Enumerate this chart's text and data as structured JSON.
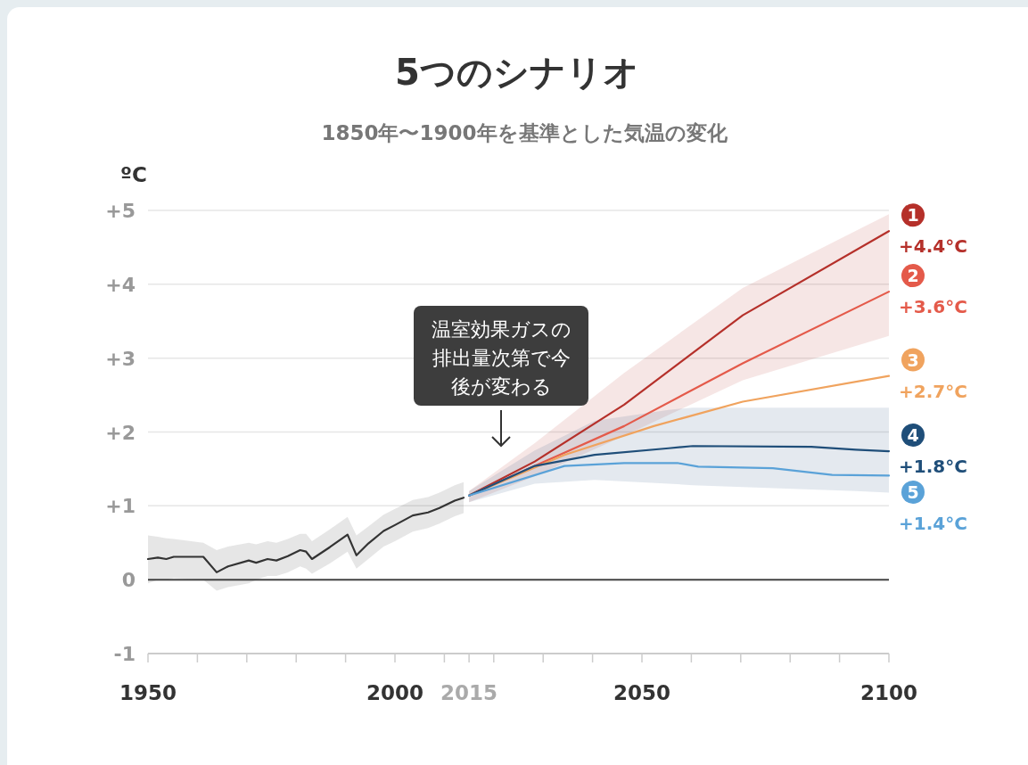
{
  "chart_data": {
    "type": "line",
    "title": "5つのシナリオ",
    "subtitle": "1850年〜1900年を基準とした気温の変化",
    "ylabel": "ºC",
    "xlim": [
      1950,
      2100
    ],
    "xticks": [
      1950,
      {
        "value": 1960,
        "label": null
      },
      {
        "value": 1970,
        "label": null
      },
      {
        "value": 1980,
        "label": null
      },
      {
        "value": 1990,
        "label": null
      },
      2000,
      2015,
      {
        "value": 2010,
        "label": null
      },
      {
        "value": 2020,
        "label": null
      },
      {
        "value": 2030,
        "label": null
      },
      {
        "value": 2040,
        "label": null
      },
      2050,
      {
        "value": 2060,
        "label": null
      },
      {
        "value": 2070,
        "label": null
      },
      {
        "value": 2080,
        "label": null
      },
      {
        "value": 2090,
        "label": null
      },
      2100
    ],
    "ylim": [
      -1,
      5
    ],
    "yticks": [
      {
        "value": 5,
        "label": "+5"
      },
      {
        "value": 4,
        "label": "+4"
      },
      {
        "value": 3,
        "label": "+3"
      },
      {
        "value": 2,
        "label": "+2"
      },
      {
        "value": 1,
        "label": "+1"
      },
      0,
      -1
    ],
    "grid": "y",
    "ref_lines": [
      {
        "axis": "y",
        "value": 0,
        "color": "#444444"
      }
    ],
    "annotations": [
      "温室効果ガスの排出量次第で今後が変わる"
    ],
    "series": [
      {
        "color": "#333333",
        "x": [
          1950,
          1952,
          1953.7,
          1955.2,
          1961.2,
          1963.9,
          1966.2,
          1970.4,
          1971.9,
          1974.2,
          1976,
          1978.3,
          1980.8,
          1982,
          1983.2,
          1986.8,
          1990.4,
          1992.2,
          1994.6,
          1997.7,
          2000,
          2003.6,
          2006.7,
          2009,
          2012.1,
          2013.9
        ],
        "values": [
          0.28,
          0.3,
          0.28,
          0.31,
          0.31,
          0.1,
          0.18,
          0.26,
          0.23,
          0.28,
          0.26,
          0.32,
          0.4,
          0.38,
          0.28,
          0.44,
          0.61,
          0.33,
          0.49,
          0.66,
          0.74,
          0.87,
          0.91,
          0.97,
          1.07,
          1.11
        ],
        "lower": [
          -0.05,
          0.0,
          0.0,
          0.02,
          0.0,
          -0.15,
          -0.1,
          -0.05,
          0.0,
          0.05,
          0.05,
          0.1,
          0.18,
          0.15,
          0.08,
          0.22,
          0.38,
          0.15,
          0.28,
          0.45,
          0.52,
          0.65,
          0.7,
          0.76,
          0.86,
          0.9
        ],
        "upper": [
          0.6,
          0.58,
          0.56,
          0.55,
          0.5,
          0.4,
          0.45,
          0.5,
          0.48,
          0.52,
          0.5,
          0.55,
          0.62,
          0.62,
          0.52,
          0.68,
          0.85,
          0.6,
          0.72,
          0.88,
          0.96,
          1.08,
          1.12,
          1.18,
          1.28,
          1.32
        ]
      },
      {
        "name": "1 +4.4°C",
        "color": "#b5302a",
        "x": [
          2015,
          2028.3,
          2046.4,
          2070.4,
          2100
        ],
        "values": [
          1.14,
          1.6,
          2.37,
          3.58,
          4.72
        ],
        "lower": [
          1.05,
          1.4,
          1.95,
          2.7,
          3.3
        ],
        "upper": [
          1.2,
          1.85,
          2.8,
          3.95,
          4.95
        ]
      },
      {
        "name": "2 +3.6°C",
        "color": "#e45a4a",
        "x": [
          2015,
          2028.3,
          2046.4,
          2070.4,
          2100
        ],
        "values": [
          1.14,
          1.54,
          2.08,
          2.93,
          3.9
        ]
      },
      {
        "name": "3 +2.7°C",
        "color": "#f0a35e",
        "x": [
          2015,
          2034.3,
          2052.4,
          2070.4,
          2100
        ],
        "values": [
          1.14,
          1.69,
          2.08,
          2.41,
          2.76
        ]
      },
      {
        "name": "4 +1.8°C",
        "color": "#1f4e79",
        "x": [
          2015,
          2028.3,
          2040.4,
          2055.4,
          2060.3,
          2084.3,
          2093.3,
          2100
        ],
        "values": [
          1.14,
          1.54,
          1.69,
          1.78,
          1.81,
          1.8,
          1.76,
          1.74
        ],
        "lower": [
          1.05,
          1.3,
          1.35,
          1.3,
          1.28,
          1.22,
          1.2,
          1.18
        ],
        "upper": [
          1.2,
          1.75,
          2.15,
          2.3,
          2.33,
          2.33,
          2.33,
          2.33
        ]
      },
      {
        "name": "5 +1.4°C",
        "color": "#5aa2d8",
        "x": [
          2015,
          2034.3,
          2046.4,
          2057.2,
          2061.4,
          2076.5,
          2088.5,
          2100
        ],
        "values": [
          1.14,
          1.54,
          1.58,
          1.58,
          1.53,
          1.51,
          1.42,
          1.41
        ]
      }
    ]
  }
}
